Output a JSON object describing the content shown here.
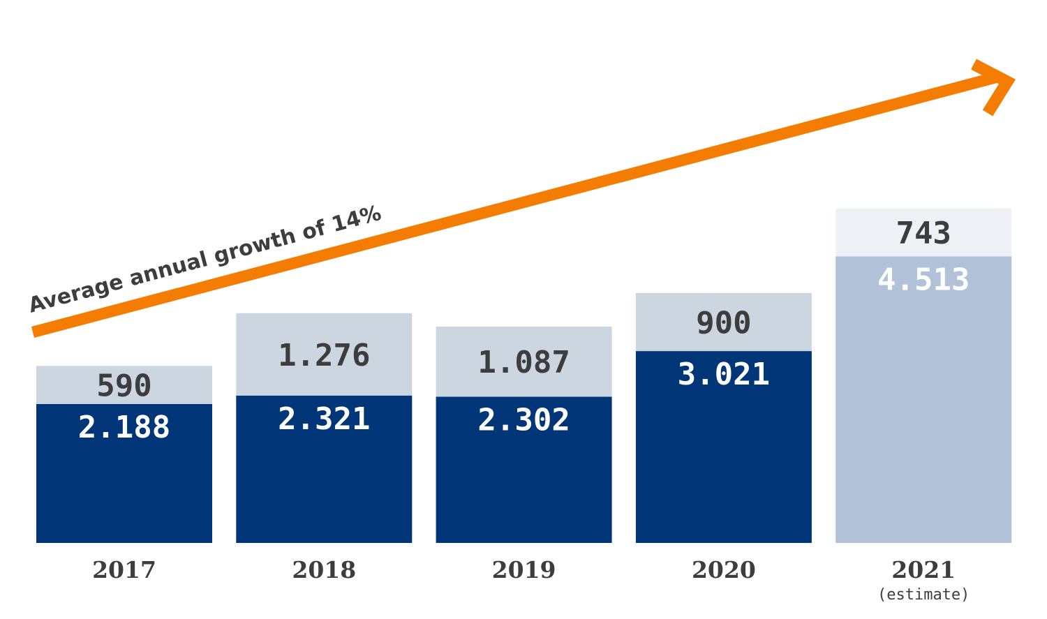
{
  "chart_data": {
    "type": "bar",
    "stacked": true,
    "categories": [
      "2017",
      "2018",
      "2019",
      "2020",
      "2021"
    ],
    "category_notes": [
      "",
      "",
      "",
      "",
      "(estimate)"
    ],
    "series": [
      {
        "values": [
          2188,
          2321,
          2302,
          3021,
          4513
        ],
        "labels": [
          "2.188",
          "2.321",
          "2.302",
          "3.021",
          "4.513"
        ]
      },
      {
        "values": [
          590,
          1276,
          1087,
          900,
          743
        ],
        "labels": [
          "590",
          "1.276",
          "1.087",
          "900",
          "743"
        ]
      }
    ],
    "annotation": "Average annual growth of 14%",
    "colors": {
      "bottom": "#003677",
      "top": "#cbd6e1",
      "estimate_bottom": "#b0c1d8",
      "estimate_top": "#eef2f6",
      "arrow": "#f47c00",
      "text_dark": "#3d3d3d",
      "text_light": "#ffffff"
    }
  }
}
